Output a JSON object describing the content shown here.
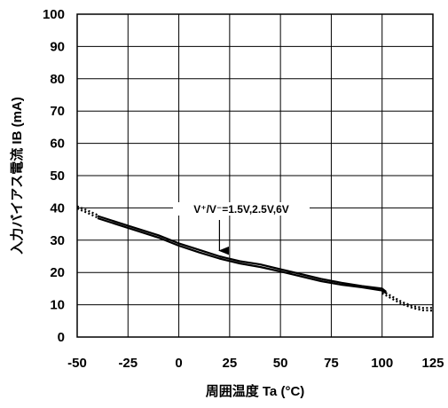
{
  "chart_data": {
    "type": "line",
    "xlabel": "周囲温度 Ta (°C)",
    "ylabel": "入力バイアス電流 IB (mA)",
    "xlim": [
      -50,
      125
    ],
    "ylim": [
      0,
      100
    ],
    "x_ticks": [
      -50,
      -25,
      0,
      25,
      50,
      75,
      100,
      125
    ],
    "y_ticks": [
      0,
      10,
      20,
      30,
      40,
      50,
      60,
      70,
      80,
      90,
      100
    ],
    "x_tick_labels": [
      "-50",
      "-25",
      "0",
      "25",
      "50",
      "75",
      "100",
      "125"
    ],
    "y_tick_labels": [
      "0",
      "10",
      "20",
      "30",
      "40",
      "50",
      "60",
      "70",
      "80",
      "90",
      "100"
    ],
    "grid": true,
    "annotation": {
      "text": "V⁺/V⁻=1.5V,2.5V,6V",
      "points_to": {
        "x": 20,
        "y": 24
      }
    },
    "series": [
      {
        "style": "solid",
        "x": [
          -40,
          -30,
          -20,
          -10,
          0,
          10,
          20,
          30,
          40,
          50,
          60,
          70,
          80,
          90,
          100,
          102
        ],
        "values": [
          37.5,
          35.5,
          33.5,
          31.5,
          29,
          27,
          25,
          23.5,
          22.5,
          21,
          19.5,
          18,
          16.8,
          15.8,
          15,
          14
        ]
      },
      {
        "style": "solid",
        "x": [
          -40,
          -30,
          -20,
          -10,
          0,
          10,
          20,
          30,
          40,
          50,
          60,
          70,
          80,
          90,
          100,
          102
        ],
        "values": [
          36.8,
          34.8,
          32.8,
          30.8,
          28.3,
          26.2,
          24.3,
          22.8,
          21.7,
          20.3,
          18.8,
          17.3,
          16.2,
          15.4,
          14.4,
          13.6
        ]
      },
      {
        "style": "dotted",
        "x": [
          -50,
          -45,
          -40
        ],
        "values": [
          40.5,
          39.2,
          37.8
        ]
      },
      {
        "style": "dotted",
        "x": [
          -50,
          -45,
          -40
        ],
        "values": [
          39.8,
          38.5,
          37
        ]
      },
      {
        "style": "dotted",
        "x": [
          85,
          90,
          95
        ],
        "values": [
          16.2,
          15.5,
          15.2
        ]
      },
      {
        "style": "dotted",
        "x": [
          100,
          105,
          110,
          115,
          120,
          125
        ],
        "values": [
          14.3,
          12.5,
          10.8,
          9.6,
          9,
          9
        ]
      },
      {
        "style": "dotted",
        "x": [
          100,
          105,
          110,
          115,
          120,
          125
        ],
        "values": [
          13.6,
          11.8,
          10.2,
          9.0,
          8.3,
          8.2
        ]
      }
    ]
  }
}
